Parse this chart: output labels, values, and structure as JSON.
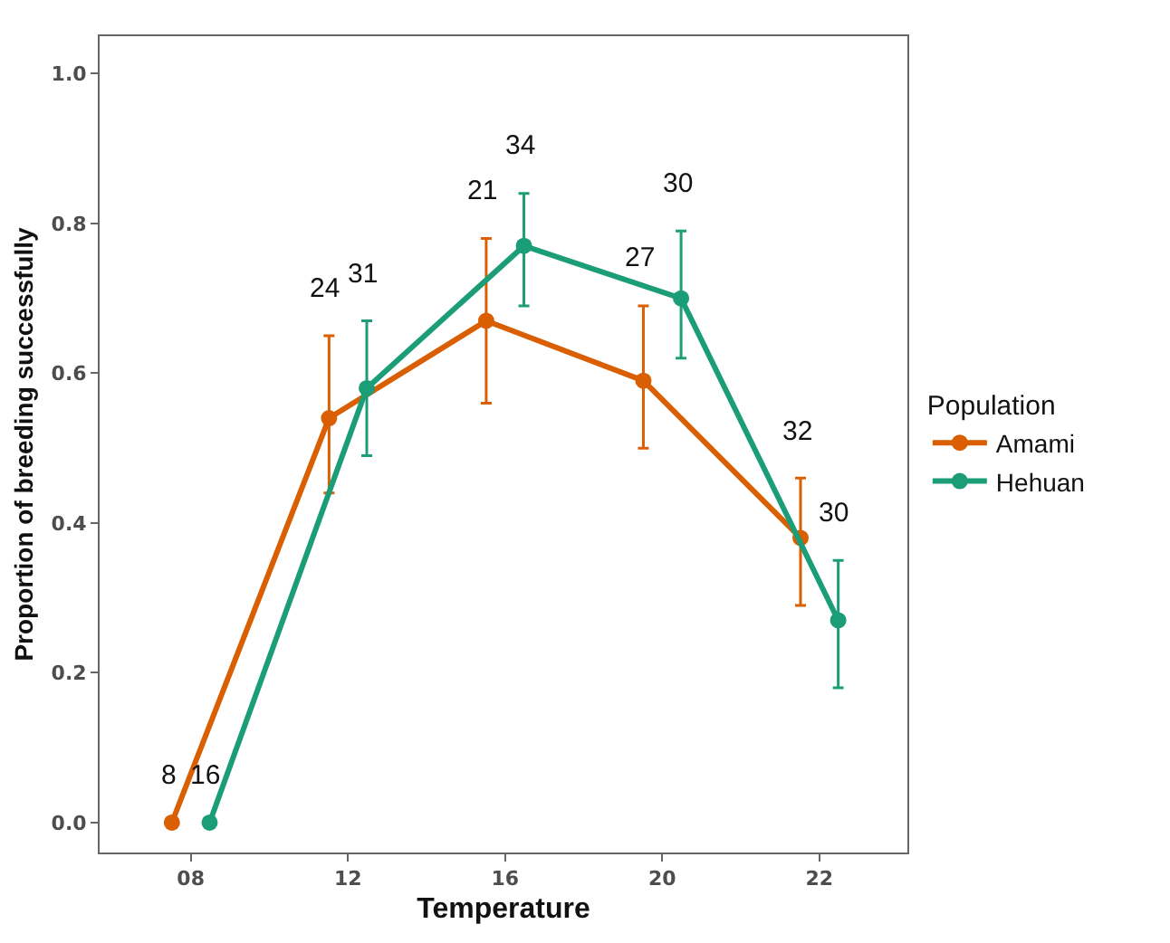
{
  "chart_data": {
    "type": "line",
    "xlabel": "Temperature",
    "ylabel": "Proportion of breeding successfully",
    "legend_title": "Population",
    "categories": [
      "08",
      "12",
      "16",
      "20",
      "22"
    ],
    "series": [
      {
        "name": "Amami",
        "color": "#d95f02",
        "values": [
          0,
          0.54,
          0.67,
          0.59,
          0.38
        ],
        "errors": [
          null,
          [
            0.44,
            0.65
          ],
          [
            0.56,
            0.78
          ],
          [
            0.5,
            0.69
          ],
          [
            0.29,
            0.46
          ]
        ]
      },
      {
        "name": "Hehuan",
        "color": "#1b9e77",
        "values": [
          0,
          0.58,
          0.77,
          0.7,
          0.27
        ],
        "errors": [
          null,
          [
            0.49,
            0.67
          ],
          [
            0.69,
            0.84
          ],
          [
            0.62,
            0.79
          ],
          [
            0.18,
            0.35
          ]
        ]
      }
    ],
    "annotations": [
      "8",
      "16",
      "24",
      "31",
      "21",
      "34",
      "27",
      "30",
      "32",
      "30"
    ],
    "ylim": [
      -0.04,
      1.05
    ],
    "yticks": [
      {
        "value": 0,
        "label": "0.0"
      },
      {
        "value": 0.2,
        "label": "0.2"
      },
      {
        "value": 0.4,
        "label": "0.4"
      },
      {
        "value": 0.6,
        "label": "0.6"
      },
      {
        "value": 0.8,
        "label": "0.8"
      },
      {
        "value": 1,
        "label": "1.0"
      }
    ],
    "marker": "circle",
    "line_style": "solid",
    "grid": false,
    "legend": "right"
  }
}
